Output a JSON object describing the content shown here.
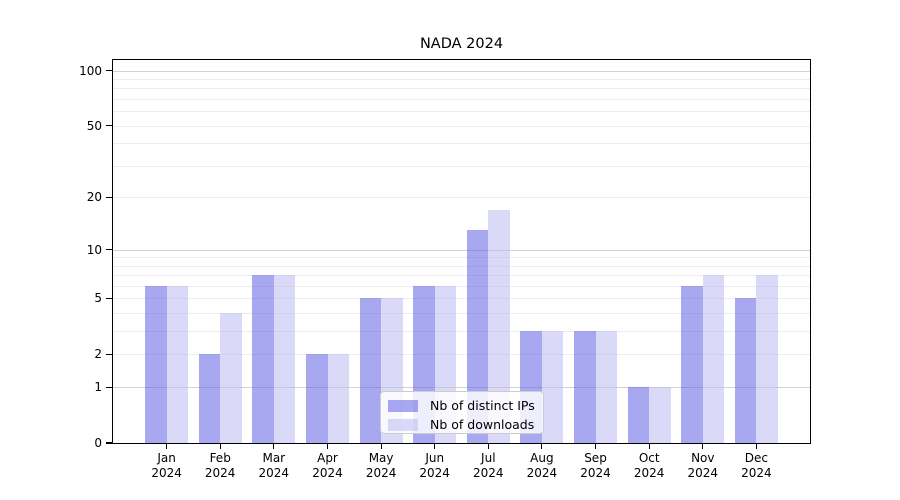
{
  "title": "NADA 2024",
  "legend": {
    "items": [
      {
        "label": "Nb of distinct IPs",
        "color": "rgba(97,97,228,0.55)"
      },
      {
        "label": "Nb of downloads",
        "color": "rgba(188,188,242,0.55)"
      }
    ],
    "position": "lower-center-inside"
  },
  "colors": {
    "series_distinct_ips": "rgba(97,97,228,0.55)",
    "series_downloads": "rgba(188,188,242,0.55)",
    "major_grid": "#d2d2d2",
    "minor_grid": "#ededed",
    "axis": "#000000",
    "background": "#ffffff"
  },
  "chart_data": {
    "type": "bar",
    "title": "NADA 2024",
    "xlabel": "",
    "ylabel": "",
    "categories": [
      "Jan 2024",
      "Feb 2024",
      "Mar 2024",
      "Apr 2024",
      "May 2024",
      "Jun 2024",
      "Jul 2024",
      "Aug 2024",
      "Sep 2024",
      "Oct 2024",
      "Nov 2024",
      "Dec 2024"
    ],
    "series": [
      {
        "name": "Nb of distinct IPs",
        "color": "rgba(97,97,228,0.55)",
        "values": [
          6,
          2,
          7,
          2,
          5,
          6,
          13,
          3,
          3,
          1,
          6,
          5
        ]
      },
      {
        "name": "Nb of downloads",
        "color": "rgba(188,188,242,0.55)",
        "values": [
          6,
          4,
          7,
          2,
          5,
          6,
          17,
          3,
          3,
          1,
          7,
          7
        ]
      }
    ],
    "yscale": "log1p",
    "yticks": [
      0,
      1,
      2,
      5,
      10,
      20,
      50,
      100
    ],
    "ylim": [
      0,
      114
    ],
    "grid": true,
    "legend_position": "lower center (inside axes)"
  }
}
